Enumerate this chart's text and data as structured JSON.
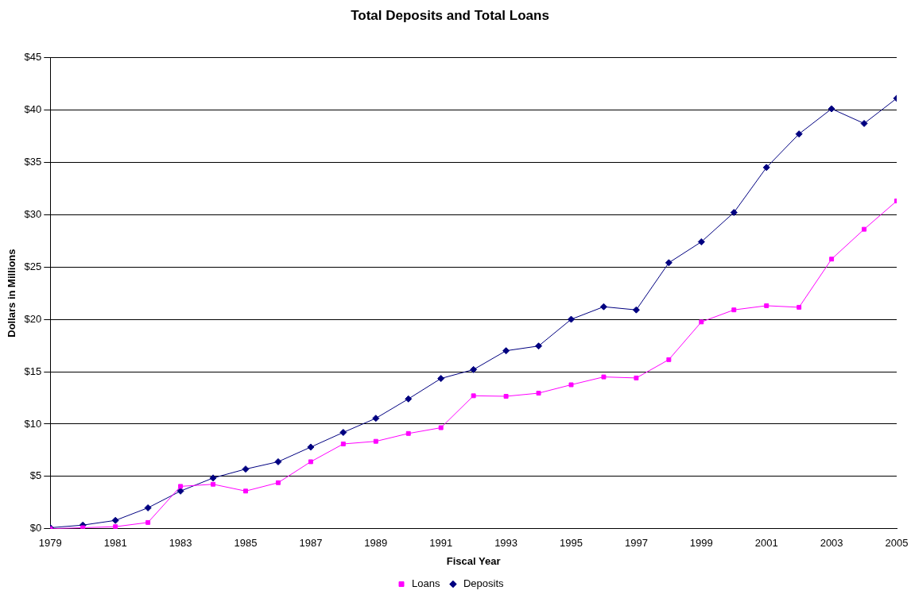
{
  "chart_data": {
    "type": "line",
    "title": "Total Deposits and Total Loans",
    "xlabel": "Fiscal Year",
    "ylabel": "Dollars in Millions",
    "x": [
      1979,
      1980,
      1981,
      1982,
      1983,
      1984,
      1985,
      1986,
      1987,
      1988,
      1989,
      1990,
      1991,
      1992,
      1993,
      1994,
      1995,
      1996,
      1997,
      1998,
      1999,
      2000,
      2001,
      2002,
      2003,
      2004,
      2005
    ],
    "series": [
      {
        "name": "Deposits",
        "color": "#000080",
        "marker": "diamond",
        "values": [
          0.1,
          0.35,
          0.8,
          2.0,
          3.6,
          4.85,
          5.7,
          6.4,
          7.8,
          9.2,
          10.55,
          12.4,
          14.35,
          15.2,
          17.0,
          17.45,
          20.0,
          21.2,
          20.9,
          25.4,
          27.4,
          30.2,
          34.5,
          37.7,
          40.1,
          38.7,
          41.1
        ]
      },
      {
        "name": "Loans",
        "color": "#ff00ff",
        "marker": "square",
        "values": [
          0,
          0.1,
          0.2,
          0.6,
          4.05,
          4.25,
          3.6,
          4.4,
          6.4,
          8.1,
          8.35,
          9.1,
          9.65,
          12.7,
          12.65,
          12.95,
          13.75,
          14.5,
          14.4,
          16.15,
          19.75,
          20.9,
          21.3,
          21.15,
          25.75,
          28.6,
          31.3
        ]
      }
    ],
    "xlim": [
      1979,
      2005
    ],
    "xticks": [
      1979,
      1981,
      1983,
      1985,
      1987,
      1989,
      1991,
      1993,
      1995,
      1997,
      1999,
      2001,
      2003,
      2005
    ],
    "ylim": [
      0,
      45
    ],
    "yticks": [
      {
        "value": 0,
        "label": "$0"
      },
      {
        "value": 5,
        "label": "$5"
      },
      {
        "value": 10,
        "label": "$10"
      },
      {
        "value": 15,
        "label": "$15"
      },
      {
        "value": 20,
        "label": "$20"
      },
      {
        "value": 25,
        "label": "$25"
      },
      {
        "value": 30,
        "label": "$30"
      },
      {
        "value": 35,
        "label": "$35"
      },
      {
        "value": 40,
        "label": "$40"
      },
      {
        "value": 45,
        "label": "$45"
      }
    ],
    "grid": "y",
    "legend": "bottom",
    "line_style": "solid"
  }
}
